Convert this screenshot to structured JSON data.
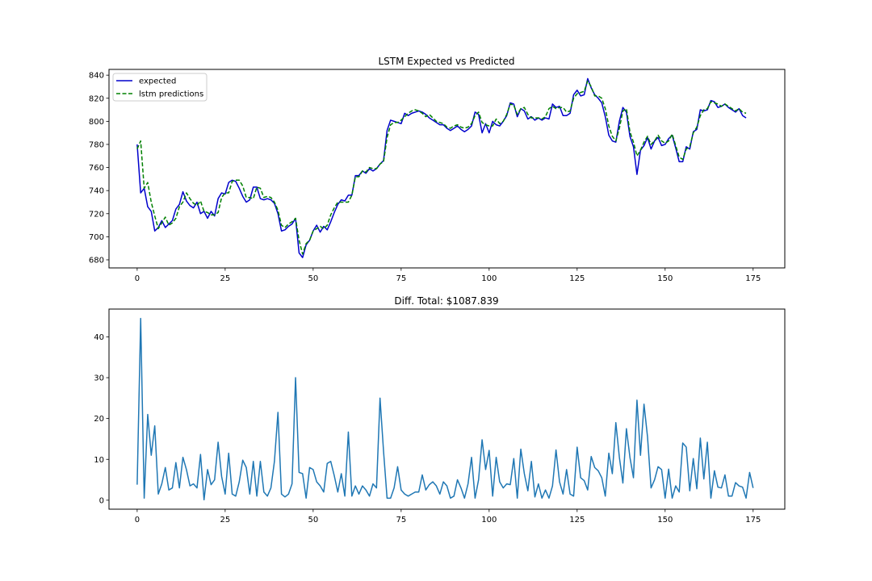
{
  "chart_data": [
    {
      "type": "line",
      "title": "LSTM Expected vs Predicted",
      "xlabel": "",
      "ylabel": "",
      "xlim": [
        -8,
        184
      ],
      "ylim": [
        673,
        845
      ],
      "xticks": [
        0,
        25,
        50,
        75,
        100,
        125,
        150,
        175
      ],
      "yticks": [
        680,
        700,
        720,
        740,
        760,
        780,
        800,
        820,
        840
      ],
      "grid": false,
      "legend": "upper-left",
      "series": [
        {
          "name": "expected",
          "color": "#0000cc",
          "style": "solid",
          "values": [
            780,
            738,
            742,
            726,
            722,
            705,
            708,
            714,
            708,
            711,
            714,
            724,
            728,
            739,
            731,
            727,
            725,
            730,
            720,
            722,
            716,
            722,
            718,
            733,
            738,
            737,
            747,
            749,
            748,
            742,
            735,
            730,
            732,
            743,
            743,
            733,
            732,
            733,
            732,
            729,
            720,
            705,
            706,
            709,
            711,
            716,
            686,
            682,
            693,
            697,
            705,
            710,
            704,
            709,
            706,
            713,
            721,
            728,
            732,
            731,
            736,
            736,
            753,
            753,
            757,
            755,
            759,
            757,
            759,
            763,
            766,
            792,
            801,
            800,
            799,
            798,
            807,
            805,
            807,
            808,
            809,
            808,
            806,
            803,
            801,
            799,
            797,
            797,
            794,
            792,
            794,
            796,
            793,
            791,
            793,
            796,
            808,
            806,
            790,
            798,
            790,
            800,
            797,
            796,
            800,
            805,
            816,
            815,
            804,
            811,
            809,
            802,
            804,
            801,
            803,
            801,
            803,
            802,
            815,
            812,
            813,
            805,
            805,
            807,
            823,
            827,
            822,
            823,
            837,
            829,
            823,
            820,
            816,
            804,
            788,
            783,
            782,
            800,
            812,
            808,
            787,
            778,
            754,
            775,
            779,
            786,
            776,
            783,
            786,
            779,
            780,
            785,
            788,
            777,
            765,
            765,
            778,
            776,
            791,
            793,
            810,
            809,
            810,
            818,
            817,
            812,
            813,
            815,
            812,
            810,
            808,
            811,
            805,
            803
          ]
        },
        {
          "name": "lstm predictions",
          "color": "#008000",
          "style": "dashed",
          "values": [
            776,
            783,
            742,
            747,
            730,
            718,
            707,
            712,
            717,
            710,
            712,
            716,
            726,
            730,
            738,
            733,
            729,
            727,
            731,
            722,
            721,
            719,
            719,
            721,
            734,
            738,
            738,
            748,
            749,
            749,
            744,
            734,
            734,
            733,
            743,
            742,
            734,
            735,
            734,
            730,
            723,
            710,
            708,
            711,
            713,
            716,
            697,
            685,
            694,
            697,
            705,
            707,
            709,
            707,
            710,
            719,
            725,
            730,
            730,
            730,
            730,
            736,
            752,
            752,
            757,
            756,
            760,
            759,
            759,
            763,
            765,
            786,
            797,
            799,
            799,
            801,
            804,
            807,
            809,
            810,
            809,
            807,
            804,
            806,
            803,
            800,
            799,
            798,
            795,
            794,
            796,
            797,
            795,
            794,
            795,
            798,
            805,
            808,
            799,
            797,
            796,
            796,
            802,
            798,
            800,
            806,
            815,
            814,
            806,
            811,
            812,
            806,
            803,
            803,
            803,
            802,
            804,
            811,
            813,
            811,
            812,
            812,
            808,
            809,
            820,
            824,
            825,
            826,
            835,
            830,
            822,
            822,
            820,
            811,
            796,
            787,
            783,
            794,
            809,
            811,
            791,
            782,
            770,
            775,
            782,
            787,
            780,
            783,
            788,
            783,
            781,
            783,
            789,
            779,
            769,
            767,
            776,
            778,
            790,
            795,
            805,
            810,
            811,
            817,
            816,
            815,
            813,
            815,
            813,
            811,
            809,
            811,
            808,
            807
          ]
        }
      ]
    },
    {
      "type": "line",
      "title": "Diff.  Total: $1087.839",
      "xlabel": "",
      "ylabel": "",
      "xlim": [
        -8,
        184
      ],
      "ylim": [
        -2.2,
        46.8
      ],
      "xticks": [
        0,
        25,
        50,
        75,
        100,
        125,
        150,
        175
      ],
      "yticks": [
        0,
        10,
        20,
        30,
        40
      ],
      "grid": false,
      "legend": "none",
      "series": [
        {
          "color": "#1f77b4",
          "style": "solid",
          "values": [
            3.8,
            44.5,
            0.5,
            21,
            11,
            18.2,
            1.5,
            4,
            8,
            2.5,
            3,
            9.2,
            3,
            10.5,
            7.5,
            3.5,
            4,
            3,
            11.2,
            0.1,
            7.5,
            3.8,
            5,
            14.2,
            5.8,
            1.5,
            11.5,
            1.5,
            1,
            4.5,
            9.8,
            8,
            1.5,
            9.5,
            1,
            9.5,
            2,
            1,
            3,
            9.5,
            21.5,
            1.5,
            0.8,
            1.5,
            4,
            30,
            6.8,
            6.5,
            0.5,
            8,
            7.5,
            4.5,
            3.5,
            2,
            9,
            9.5,
            6,
            2,
            6.5,
            1,
            16.7,
            1,
            3.5,
            1.5,
            3.5,
            2.5,
            1,
            4,
            3,
            25,
            12,
            0.5,
            0.5,
            3,
            8.2,
            2.5,
            1.5,
            1,
            1.5,
            2,
            2,
            6.2,
            2.5,
            3.8,
            4.5,
            3.5,
            1.5,
            4.5,
            3.5,
            0.5,
            1,
            5,
            3,
            0.5,
            4,
            10.5,
            0.5,
            5,
            14.8,
            7.5,
            12.2,
            1,
            10.5,
            4.5,
            3,
            4,
            3.8,
            10.2,
            0.5,
            12.5,
            6.5,
            2.3,
            9.5,
            0.8,
            4,
            0.5,
            2.5,
            0.5,
            3.5,
            12.3,
            4.5,
            1.5,
            7.5,
            1.5,
            1,
            13,
            5.5,
            4.8,
            2.5,
            10.7,
            8,
            7.2,
            5.5,
            1,
            11.5,
            6.5,
            19,
            10.5,
            4.2,
            17.5,
            10.5,
            5.5,
            24.5,
            11,
            23.5,
            15.5,
            3,
            5,
            8.2,
            7.5,
            0.5,
            7.6,
            0.5,
            3.5,
            2,
            14,
            13,
            2.3,
            10.2,
            2.8,
            15.2,
            5.2,
            14.2,
            0.5,
            7.2,
            3.2,
            3,
            6.2,
            1,
            1,
            4.3,
            3.5,
            3.2,
            0.5,
            6.8,
            3
          ]
        }
      ]
    }
  ]
}
